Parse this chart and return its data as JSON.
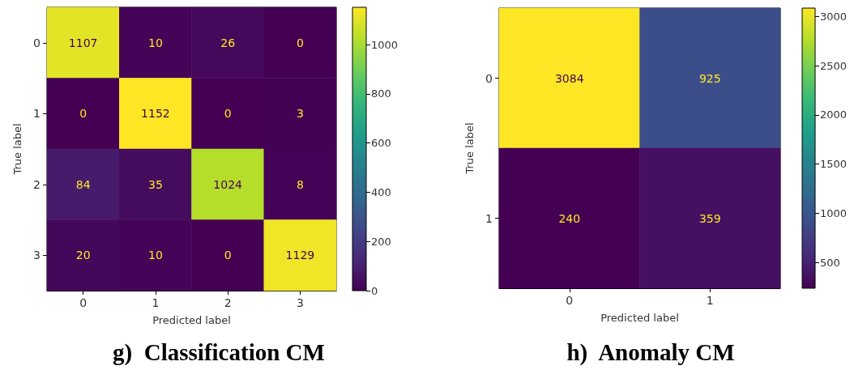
{
  "chart_data": [
    {
      "type": "heatmap",
      "title": "g)  Classification CM",
      "xlabel": "Predicted label",
      "ylabel": "True label",
      "categories": [
        "0",
        "1",
        "2",
        "3"
      ],
      "y_categories": [
        "0",
        "1",
        "2",
        "3"
      ],
      "cells": [
        [
          1107,
          10,
          26,
          0
        ],
        [
          0,
          1152,
          0,
          3
        ],
        [
          84,
          35,
          1024,
          8
        ],
        [
          20,
          10,
          0,
          1129
        ]
      ],
      "clim": [
        0,
        1152
      ],
      "cticks": [
        0,
        200,
        400,
        600,
        800,
        1000
      ],
      "data_labels": true
    },
    {
      "type": "heatmap",
      "title": "h)  Anomaly CM",
      "xlabel": "Predicted label",
      "ylabel": "True label",
      "categories": [
        "0",
        "1"
      ],
      "y_categories": [
        "0",
        "1"
      ],
      "cells": [
        [
          3084,
          925
        ],
        [
          240,
          359
        ]
      ],
      "clim": [
        240,
        3084
      ],
      "cticks": [
        500,
        1000,
        1500,
        2000,
        2500,
        3000
      ],
      "data_labels": true
    }
  ]
}
